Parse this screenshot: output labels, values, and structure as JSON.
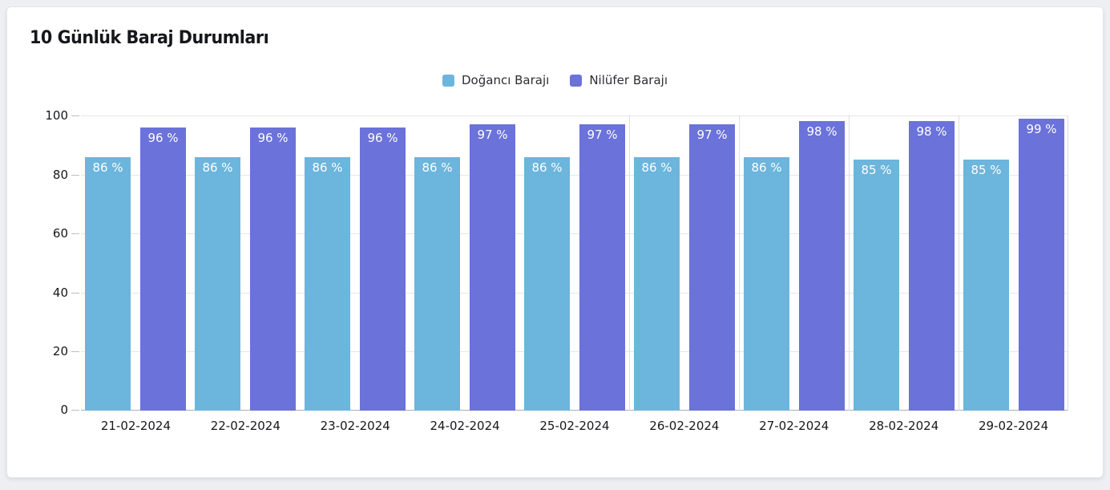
{
  "page": {
    "title": "10 Günlük Baraj Durumları"
  },
  "chart_data": {
    "type": "bar",
    "title": "10 Günlük Baraj Durumları",
    "categories": [
      "21-02-2024",
      "22-02-2024",
      "23-02-2024",
      "24-02-2024",
      "25-02-2024",
      "26-02-2024",
      "27-02-2024",
      "28-02-2024",
      "29-02-2024"
    ],
    "series": [
      {
        "name": "Doğancı Barajı",
        "color": "#6cb5dc",
        "values": [
          86,
          86,
          86,
          86,
          86,
          86,
          86,
          85,
          85
        ],
        "labels": [
          "86 %",
          "86 %",
          "86 %",
          "86 %",
          "86 %",
          "86 %",
          "86 %",
          "85 %",
          "85 %"
        ]
      },
      {
        "name": "Nilüfer Barajı",
        "color": "#6b72da",
        "values": [
          96,
          96,
          96,
          97,
          97,
          97,
          98,
          98,
          99
        ],
        "labels": [
          "96 %",
          "96 %",
          "96 %",
          "97 %",
          "97 %",
          "97 %",
          "98 %",
          "98 %",
          "99 %"
        ]
      }
    ],
    "value_suffix": " %",
    "xlabel": "",
    "ylabel": "",
    "ylim": [
      0,
      100
    ],
    "yticks": [
      0,
      20,
      40,
      60,
      80,
      100
    ],
    "grid": true,
    "legend_position": "top",
    "vertical_separator_boundaries": [
      5,
      6,
      7,
      8
    ],
    "plot_right_border": true
  },
  "colors": {
    "page_background": "#edeff2",
    "card_background": "#ffffff",
    "card_border": "#e4e7eb",
    "gridline": "#e5e6e8",
    "axis_line": "#a9b0b7",
    "separator": "#dddfe2",
    "bar_label_text": "#ffffff",
    "axis_label_text": "#16181b"
  }
}
